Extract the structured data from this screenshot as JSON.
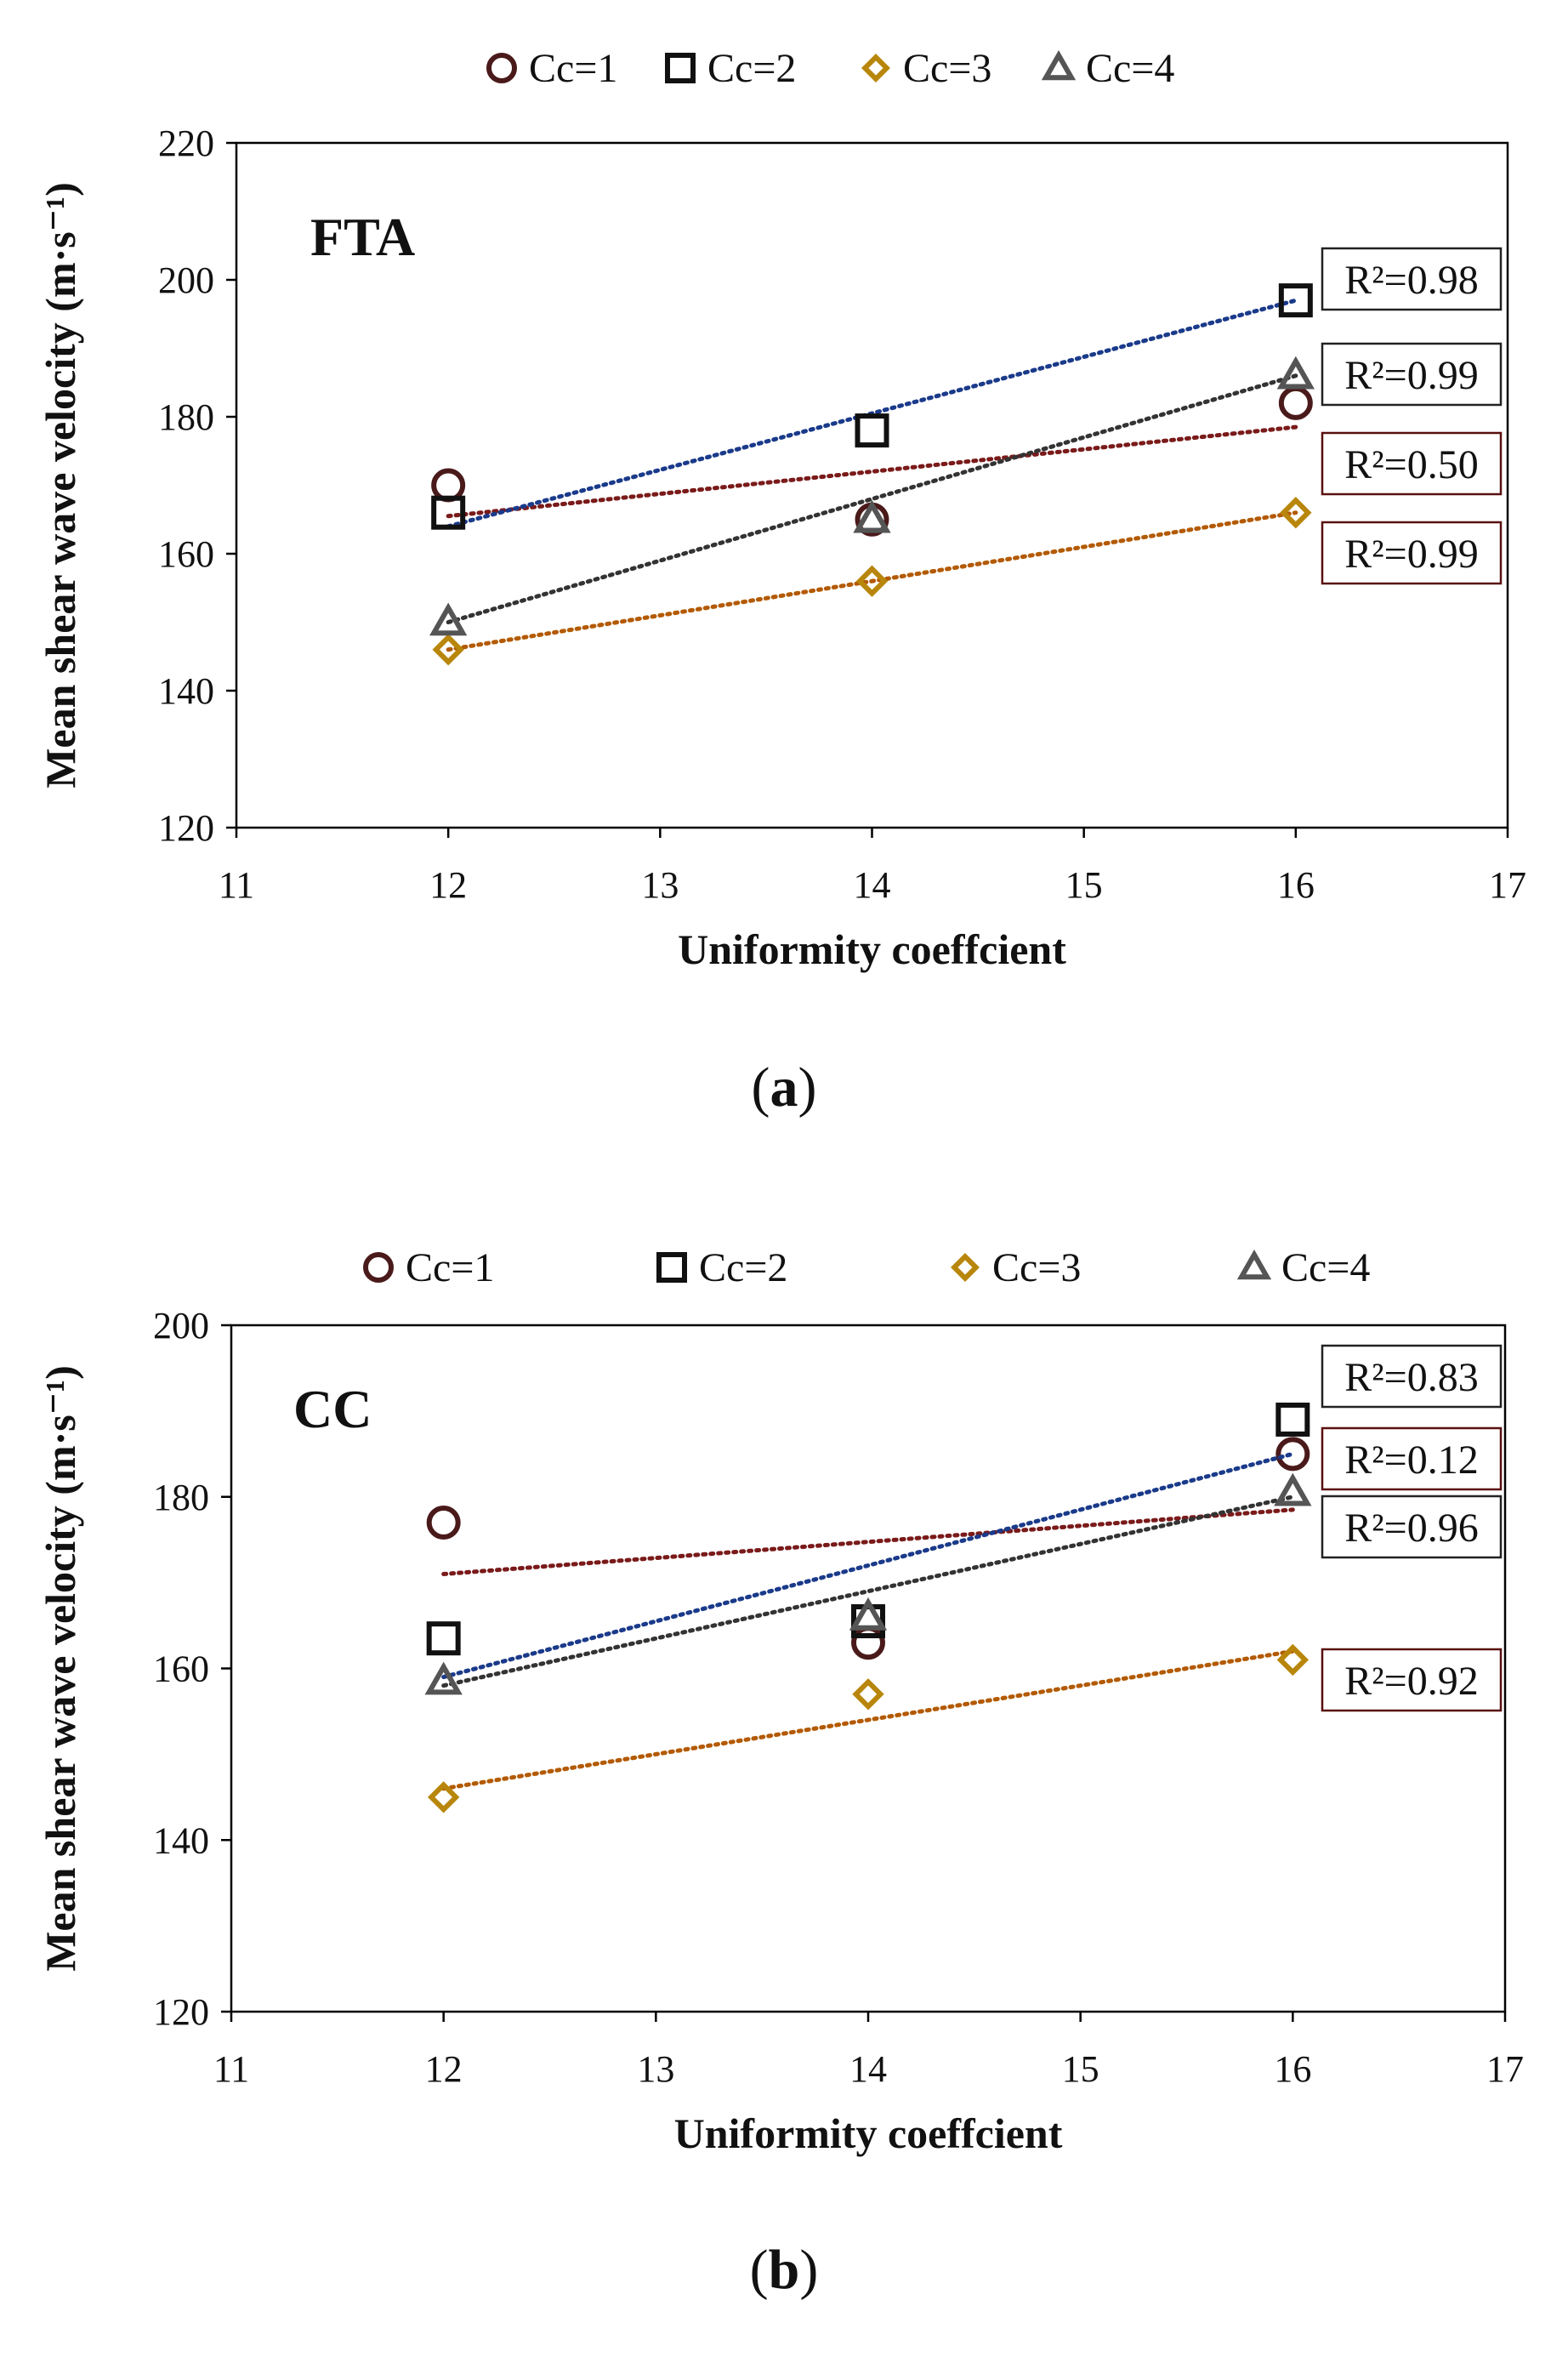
{
  "chart_data": [
    {
      "type": "scatter",
      "panel_label": "a",
      "title": "FTA",
      "xlabel": "Uniformity coeffcient",
      "ylabel": "Mean shear wave velocity (m·s⁻¹)",
      "xlim": [
        11,
        17
      ],
      "ylim": [
        120,
        220
      ],
      "xticks": [
        11,
        12,
        13,
        14,
        15,
        16,
        17
      ],
      "yticks": [
        120,
        140,
        160,
        180,
        200,
        220
      ],
      "grid": false,
      "legend": "top",
      "series": [
        {
          "name": "Cc=1",
          "marker": "circle",
          "color": "#4a1a1a",
          "trend_color": "#7a1a1a",
          "x": [
            12,
            14,
            16
          ],
          "y": [
            170,
            165,
            182
          ],
          "trendline": {
            "x": [
              12,
              16
            ],
            "y": [
              165.5,
              178.5
            ]
          },
          "r2_label": "R²=0.50"
        },
        {
          "name": "Cc=2",
          "marker": "square",
          "color": "#111111",
          "trend_color": "#1a3a8a",
          "x": [
            12,
            14,
            16
          ],
          "y": [
            166,
            178,
            197
          ],
          "trendline": {
            "x": [
              12,
              16
            ],
            "y": [
              164,
              197
            ]
          },
          "r2_label": "R²=0.98"
        },
        {
          "name": "Cc=3",
          "marker": "diamond",
          "color": "#b8860b",
          "trend_color": "#b35a00",
          "x": [
            12,
            14,
            16
          ],
          "y": [
            146,
            156,
            166
          ],
          "trendline": {
            "x": [
              12,
              16
            ],
            "y": [
              146,
              166
            ]
          },
          "r2_label": "R²=0.99"
        },
        {
          "name": "Cc=4",
          "marker": "triangle",
          "color": "#555555",
          "trend_color": "#333333",
          "x": [
            12,
            14,
            16
          ],
          "y": [
            150,
            165,
            186
          ],
          "trendline": {
            "x": [
              12,
              16
            ],
            "y": [
              150,
              186
            ]
          },
          "r2_label": "R²=0.99"
        }
      ]
    },
    {
      "type": "scatter",
      "panel_label": "b",
      "title": "CC",
      "xlabel": "Uniformity coeffcient",
      "ylabel": "Mean shear wave velocity (m·s⁻¹)",
      "xlim": [
        11,
        17
      ],
      "ylim": [
        120,
        200
      ],
      "xticks": [
        11,
        12,
        13,
        14,
        15,
        16,
        17
      ],
      "yticks": [
        120,
        140,
        160,
        180,
        200
      ],
      "grid": false,
      "legend": "top",
      "series": [
        {
          "name": "Cc=1",
          "marker": "circle",
          "color": "#4a1a1a",
          "trend_color": "#7a1a1a",
          "x": [
            12,
            14,
            16
          ],
          "y": [
            177,
            163,
            185
          ],
          "trendline": {
            "x": [
              12,
              16
            ],
            "y": [
              171,
              178.5
            ]
          },
          "r2_label": "R²=0.12"
        },
        {
          "name": "Cc=2",
          "marker": "square",
          "color": "#111111",
          "trend_color": "#1a3a8a",
          "x": [
            12,
            14,
            16
          ],
          "y": [
            163.5,
            165.5,
            189
          ],
          "trendline": {
            "x": [
              12,
              16
            ],
            "y": [
              159,
              185
            ]
          },
          "r2_label": "R²=0.83"
        },
        {
          "name": "Cc=3",
          "marker": "diamond",
          "color": "#b8860b",
          "trend_color": "#b35a00",
          "x": [
            12,
            14,
            16
          ],
          "y": [
            145,
            157,
            161
          ],
          "trendline": {
            "x": [
              12,
              16
            ],
            "y": [
              146,
              162
            ]
          },
          "r2_label": "R²=0.92"
        },
        {
          "name": "Cc=4",
          "marker": "triangle",
          "color": "#555555",
          "trend_color": "#333333",
          "x": [
            12,
            14,
            16
          ],
          "y": [
            158.5,
            166,
            180.5
          ],
          "trendline": {
            "x": [
              12,
              16
            ],
            "y": [
              158,
              180
            ]
          },
          "r2_label": "R²=0.96"
        }
      ]
    }
  ]
}
